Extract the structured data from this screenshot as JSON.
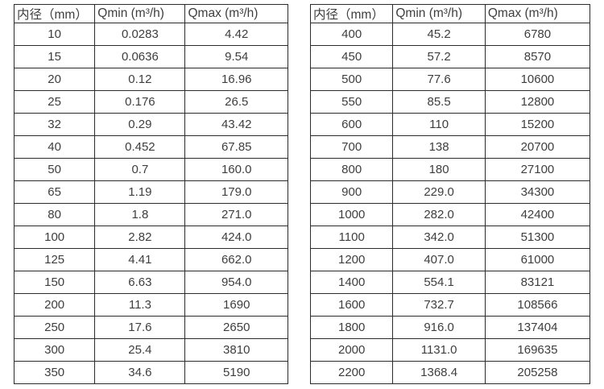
{
  "page": {
    "background_color": "#ffffff",
    "border_color": "#2b2b2b",
    "text_color": "#3e3e3e"
  },
  "tables": [
    {
      "name": "flow-spec-table-small-diameters",
      "headers": [
        "内径（mm）",
        "Qmin (m³/h)",
        "Qmax (m³/h)"
      ],
      "rows": [
        [
          "10",
          "0.0283",
          "4.42"
        ],
        [
          "15",
          "0.0636",
          "9.54"
        ],
        [
          "20",
          "0.12",
          "16.96"
        ],
        [
          "25",
          "0.176",
          "26.5"
        ],
        [
          "32",
          "0.29",
          "43.42"
        ],
        [
          "40",
          "0.452",
          "67.85"
        ],
        [
          "50",
          "0.7",
          "160.0"
        ],
        [
          "65",
          "1.19",
          "179.0"
        ],
        [
          "80",
          "1.8",
          "271.0"
        ],
        [
          "100",
          "2.82",
          "424.0"
        ],
        [
          "125",
          "4.41",
          "662.0"
        ],
        [
          "150",
          "6.63",
          "954.0"
        ],
        [
          "200",
          "11.3",
          "1690"
        ],
        [
          "250",
          "17.6",
          "2650"
        ],
        [
          "300",
          "25.4",
          "3810"
        ],
        [
          "350",
          "34.6",
          "5190"
        ]
      ]
    },
    {
      "name": "flow-spec-table-large-diameters",
      "headers": [
        "内径（mm）",
        "Qmin (m³/h)",
        "Qmax (m³/h)"
      ],
      "rows": [
        [
          "400",
          "45.2",
          "6780"
        ],
        [
          "450",
          "57.2",
          "8570"
        ],
        [
          "500",
          "77.6",
          "10600"
        ],
        [
          "550",
          "85.5",
          "12800"
        ],
        [
          "600",
          "110",
          "15200"
        ],
        [
          "700",
          "138",
          "20700"
        ],
        [
          "800",
          "180",
          "27100"
        ],
        [
          "900",
          "229.0",
          "34300"
        ],
        [
          "1000",
          "282.0",
          "42400"
        ],
        [
          "1100",
          "342.0",
          "51300"
        ],
        [
          "1200",
          "407.0",
          "61000"
        ],
        [
          "1400",
          "554.1",
          "83121"
        ],
        [
          "1600",
          "732.7",
          "108566"
        ],
        [
          "1800",
          "916.0",
          "137404"
        ],
        [
          "2000",
          "1131.0",
          "169635"
        ],
        [
          "2200",
          "1368.4",
          "205258"
        ]
      ]
    }
  ]
}
